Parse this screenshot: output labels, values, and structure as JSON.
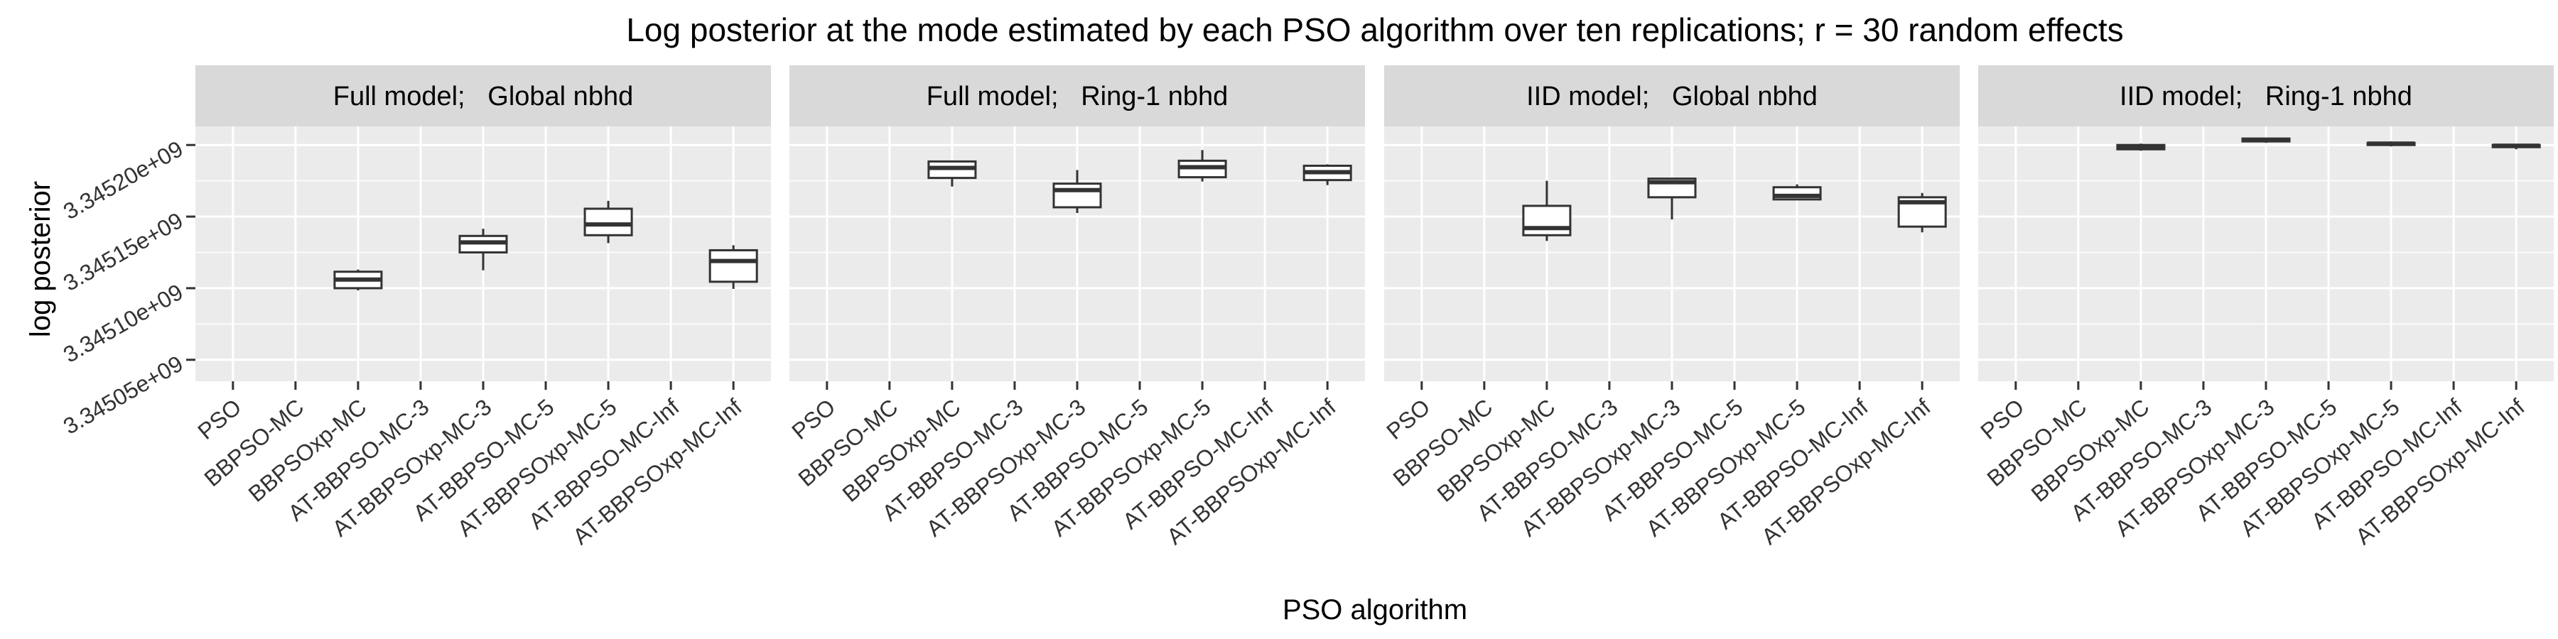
{
  "chart_data": {
    "type": "boxplot",
    "title": "Log posterior at the mode estimated by each PSO algorithm over ten replications; r = 30 random effects",
    "xlabel": "PSO algorithm",
    "ylabel": "log posterior",
    "categories": [
      "PSO",
      "BBPSO-MC",
      "BBPSOxp-MC",
      "AT-BBPSO-MC-3",
      "AT-BBPSOxp-MC-3",
      "AT-BBPSO-MC-5",
      "AT-BBPSOxp-MC-5",
      "AT-BBPSO-MC-Inf",
      "AT-BBPSOxp-MC-Inf"
    ],
    "y_ticks": [
      3345050000.0,
      3345100000.0,
      3345150000.0,
      3345200000.0
    ],
    "y_tick_labels": [
      "3.34505e+09",
      "3.34510e+09",
      "3.34515e+09",
      "3.34520e+09"
    ],
    "ylim": [
      3345035000.0,
      3345213000.0
    ],
    "grid": true,
    "panels": [
      {
        "title": "Full model;   Global nbhd",
        "boxes": [
          {
            "category": "BBPSOxp-MC",
            "min": 3345098500.0,
            "q1": 3345100000.0,
            "median": 3345106000.0,
            "q3": 3345111500.0,
            "max": 3345113000.0
          },
          {
            "category": "AT-BBPSOxp-MC-3",
            "min": 3345112500.0,
            "q1": 3345125000.0,
            "median": 3345132000.0,
            "q3": 3345136500.0,
            "max": 3345141500.0
          },
          {
            "category": "AT-BBPSOxp-MC-5",
            "min": 3345131500.0,
            "q1": 3345137000.0,
            "median": 3345144500.0,
            "q3": 3345155500.0,
            "max": 3345161000.0
          },
          {
            "category": "AT-BBPSOxp-MC-Inf",
            "min": 3345099500.0,
            "q1": 3345104500.0,
            "median": 3345119000.0,
            "q3": 3345126500.0,
            "max": 3345130000.0
          }
        ]
      },
      {
        "title": "Full model;   Ring-1 nbhd",
        "boxes": [
          {
            "category": "BBPSOxp-MC",
            "min": 3345171000.0,
            "q1": 3345177000.0,
            "median": 3345184000.0,
            "q3": 3345188500.0,
            "max": 3345188500.0
          },
          {
            "category": "AT-BBPSOxp-MC-3",
            "min": 3345152500.0,
            "q1": 3345156500.0,
            "median": 3345168500.0,
            "q3": 3345173000.0,
            "max": 3345182500.0
          },
          {
            "category": "AT-BBPSOxp-MC-5",
            "min": 3345174500.0,
            "q1": 3345177500.0,
            "median": 3345184500.0,
            "q3": 3345189000.0,
            "max": 3345196500.0
          },
          {
            "category": "AT-BBPSOxp-MC-Inf",
            "min": 3345172000.0,
            "q1": 3345175500.0,
            "median": 3345181000.0,
            "q3": 3345185500.0,
            "max": 3345186500.0
          }
        ]
      },
      {
        "title": "IID model;   Global nbhd",
        "boxes": [
          {
            "category": "BBPSOxp-MC",
            "min": 3345133000.0,
            "q1": 3345137000.0,
            "median": 3345142000.0,
            "q3": 3345157500.0,
            "max": 3345175000.0
          },
          {
            "category": "AT-BBPSOxp-MC-3",
            "min": 3345148000.0,
            "q1": 3345163500.0,
            "median": 3345174000.0,
            "q3": 3345176500.0,
            "max": 3345176500.0
          },
          {
            "category": "AT-BBPSOxp-MC-5",
            "min": 3345162000.0,
            "q1": 3345162000.0,
            "median": 3345164500.0,
            "q3": 3345170500.0,
            "max": 3345172500.0
          },
          {
            "category": "AT-BBPSOxp-MC-Inf",
            "min": 3345139000.0,
            "q1": 3345143000.0,
            "median": 3345160000.0,
            "q3": 3345163500.0,
            "max": 3345166500.0
          }
        ]
      },
      {
        "title": "IID model;   Ring-1 nbhd",
        "boxes": [
          {
            "category": "BBPSOxp-MC",
            "min": 3345196000.0,
            "q1": 3345197000.0,
            "median": 3345199000.0,
            "q3": 3345200000.0,
            "max": 3345201000.0
          },
          {
            "category": "AT-BBPSOxp-MC-3",
            "min": 3345201500.0,
            "q1": 3345202500.0,
            "median": 3345203500.0,
            "q3": 3345204500.0,
            "max": 3345204500.0
          },
          {
            "category": "AT-BBPSOxp-MC-5",
            "min": 3345199000.0,
            "q1": 3345200000.0,
            "median": 3345201000.0,
            "q3": 3345201500.0,
            "max": 3345202500.0
          },
          {
            "category": "AT-BBPSOxp-MC-Inf",
            "min": 3345197000.0,
            "q1": 3345198500.0,
            "median": 3345199500.0,
            "q3": 3345200000.0,
            "max": 3345200500.0
          }
        ]
      }
    ]
  },
  "colors": {
    "panel_bg": "#ebebeb",
    "strip_bg": "#d9d9d9",
    "grid": "#ffffff",
    "box_stroke": "#333333",
    "box_fill": "#ffffff"
  }
}
